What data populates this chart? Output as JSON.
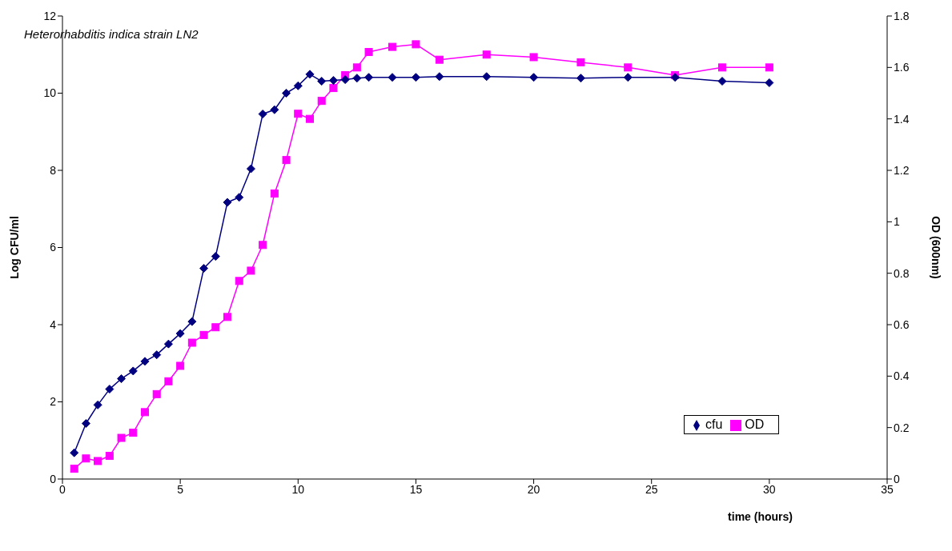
{
  "chart_data": {
    "type": "line",
    "annotations": [
      "Heterorhabditis indica strain LN2"
    ],
    "xlabel": "time (hours)",
    "ylabel": "Log CFU/ml",
    "y2label": "OD (600nm)",
    "x": [
      0.5,
      1,
      1.5,
      2,
      2.5,
      3,
      3.5,
      4,
      4.5,
      5,
      5.5,
      6,
      6.5,
      7,
      7.5,
      8,
      8.5,
      9,
      9.5,
      10,
      10.5,
      11,
      11.5,
      12,
      12.5,
      13,
      14,
      15,
      16,
      18,
      20,
      22,
      24,
      26,
      28,
      30
    ],
    "series": [
      {
        "name": "cfu",
        "color": "#000080",
        "marker": "diamond",
        "values": [
          0.68,
          1.44,
          1.92,
          2.33,
          2.6,
          2.8,
          3.05,
          3.22,
          3.5,
          3.77,
          4.08,
          5.46,
          5.77,
          7.17,
          7.3,
          8.04,
          9.46,
          9.57,
          10.0,
          10.19,
          10.49,
          10.31,
          10.33,
          10.35,
          10.39,
          10.41,
          10.41,
          10.41,
          10.43,
          10.43,
          10.41,
          10.39,
          10.41,
          10.41,
          10.31,
          10.27
        ]
      },
      {
        "name": "OD",
        "color": "#ff00ff",
        "marker": "square",
        "axis": "y2",
        "values": [
          0.04,
          0.08,
          0.07,
          0.09,
          0.16,
          0.18,
          0.26,
          0.33,
          0.38,
          0.44,
          0.53,
          0.56,
          0.59,
          0.63,
          0.77,
          0.81,
          0.91,
          1.11,
          1.24,
          1.42,
          1.4,
          1.47,
          1.52,
          1.57,
          1.6,
          1.66,
          1.68,
          1.69,
          1.63,
          1.65,
          1.64,
          1.62,
          1.6,
          1.57,
          1.6,
          1.6
        ]
      }
    ],
    "xlim": [
      0,
      35
    ],
    "xticks": [
      0,
      5,
      10,
      15,
      20,
      25,
      30,
      35
    ],
    "ylim": [
      0,
      12
    ],
    "yticks": [
      0,
      2,
      4,
      6,
      8,
      10,
      12
    ],
    "y2lim": [
      0,
      1.8
    ],
    "y2ticks": [
      0,
      0.2,
      0.4,
      0.6,
      0.8,
      1,
      1.2,
      1.4,
      1.6,
      1.8
    ],
    "legend": "bottom right",
    "grid": false,
    "line_style": "solid"
  }
}
